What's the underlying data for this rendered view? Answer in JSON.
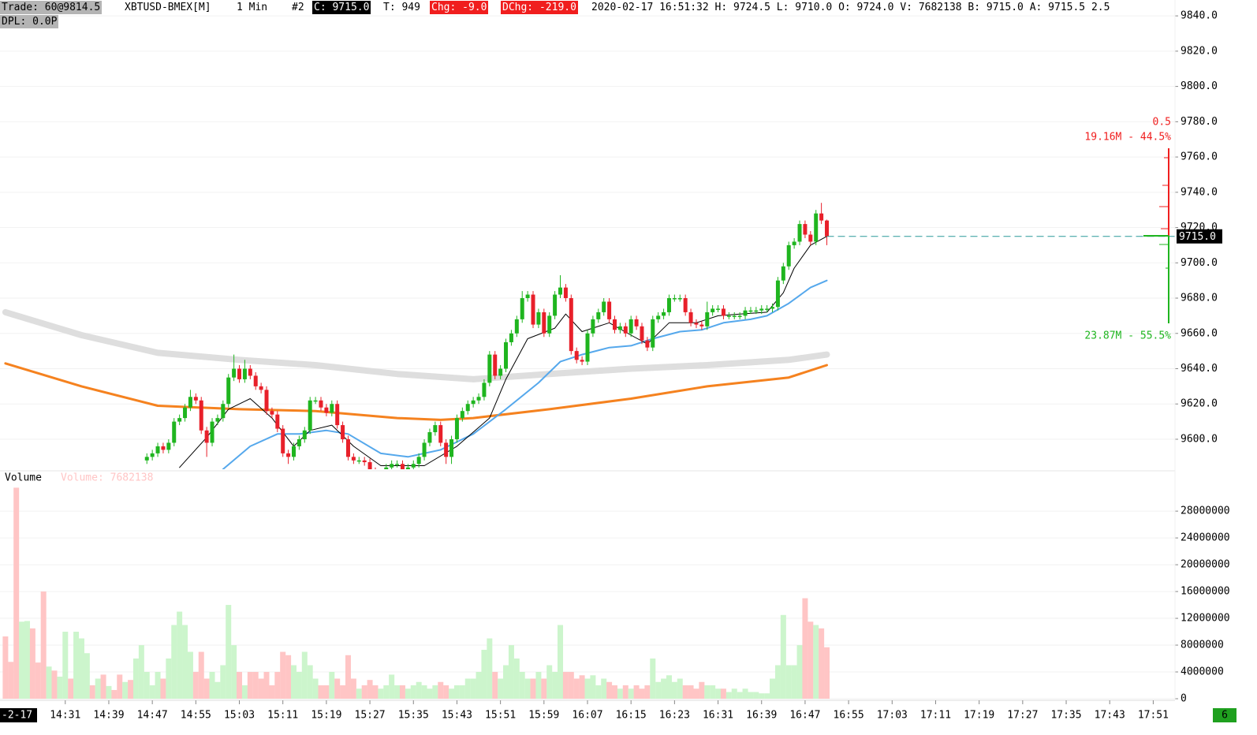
{
  "header": {
    "trade": "Trade: 60@9814.5",
    "symbol": "XBTUSD-BMEX[M]",
    "interval": "1 Min",
    "chart_no": "#2",
    "close": "C: 9715.0",
    "ticks": "T: 949",
    "change": "Chg: -9.0",
    "day_change": "DChg: -219.0",
    "summary": "2020-02-17 16:51:32 H: 9724.5 L: 9710.0 O: 9724.0 V: 7682138 B: 9715.0 A: 9715.5 2.5",
    "dpl": "DPL: 0.0P"
  },
  "chart_data": {
    "type": "candlestick",
    "xlim": [
      "14:19",
      "17:55"
    ],
    "xticks": [
      "14:31",
      "14:39",
      "14:47",
      "14:55",
      "15:03",
      "15:11",
      "15:19",
      "15:27",
      "15:35",
      "15:43",
      "15:51",
      "15:59",
      "16:07",
      "16:15",
      "16:23",
      "16:31",
      "16:39",
      "16:47",
      "16:55",
      "17:03",
      "17:11",
      "17:19",
      "17:27",
      "17:35",
      "17:43",
      "17:51"
    ],
    "x_date_label": "-2-17",
    "ylim": [
      9583,
      9849
    ],
    "yticks": [
      {
        "value": 9600,
        "label": "9600.0"
      },
      {
        "value": 9620,
        "label": "9620.0"
      },
      {
        "value": 9640,
        "label": "9640.0"
      },
      {
        "value": 9660,
        "label": "9660.0"
      },
      {
        "value": 9680,
        "label": "9680.0"
      },
      {
        "value": 9700,
        "label": "9700.0"
      },
      {
        "value": 9720,
        "label": "9720.0"
      },
      {
        "value": 9740,
        "label": "9740.0"
      },
      {
        "value": 9760,
        "label": "9760.0"
      },
      {
        "value": 9780,
        "label": "9780.0"
      },
      {
        "value": 9800,
        "label": "9800.0"
      },
      {
        "value": 9820,
        "label": "9820.0"
      },
      {
        "value": 9840,
        "label": "9840.0"
      }
    ],
    "grid": true,
    "start": "14:46",
    "up_color": "#1fb51f",
    "down_color": "#e8202a",
    "open": [
      9588,
      9590,
      9592,
      9596,
      9594,
      9598,
      9610,
      9612,
      9618,
      9624,
      9622,
      9605,
      9598,
      9610,
      9612,
      9620,
      9635,
      9640,
      9634,
      9640,
      9636,
      9630,
      9628,
      9616,
      9614,
      9606,
      9592,
      9590,
      9596,
      9600,
      9605,
      9622,
      9622,
      9618,
      9615,
      9620,
      9608,
      9600,
      9590,
      9588,
      9588,
      9587,
      9582,
      9580,
      9580,
      9584,
      9586,
      9586,
      9582,
      9584,
      9586,
      9590,
      9598,
      9604,
      9608,
      9598,
      9590,
      9600,
      9612,
      9616,
      9620,
      9622,
      9624,
      9632,
      9648,
      9636,
      9640,
      9655,
      9660,
      9668,
      9680,
      9682,
      9665,
      9672,
      9660,
      9670,
      9682,
      9686,
      9680,
      9650,
      9645,
      9644,
      9660,
      9668,
      9672,
      9678,
      9668,
      9662,
      9664,
      9660,
      9668,
      9664,
      9656,
      9652,
      9668,
      9670,
      9672,
      9680,
      9680,
      9680,
      9672,
      9666,
      9665,
      9664,
      9672,
      9674,
      9674,
      9670,
      9670,
      9670,
      9670,
      9673,
      9673,
      9673,
      9674,
      9674,
      9675,
      9690,
      9698,
      9710,
      9712,
      9722,
      9716,
      9712,
      9728,
      9724
    ],
    "high": [
      9592,
      9594,
      9598,
      9598,
      9600,
      9612,
      9614,
      9620,
      9628,
      9626,
      9624,
      9607,
      9612,
      9614,
      9622,
      9637,
      9648,
      9642,
      9645,
      9642,
      9638,
      9632,
      9630,
      9618,
      9616,
      9608,
      9594,
      9598,
      9602,
      9607,
      9624,
      9624,
      9624,
      9620,
      9622,
      9622,
      9610,
      9602,
      9592,
      9590,
      9590,
      9589,
      9584,
      9582,
      9586,
      9588,
      9588,
      9588,
      9586,
      9588,
      9592,
      9600,
      9606,
      9610,
      9610,
      9600,
      9602,
      9614,
      9618,
      9622,
      9624,
      9626,
      9634,
      9650,
      9650,
      9642,
      9657,
      9662,
      9670,
      9684,
      9684,
      9684,
      9674,
      9674,
      9672,
      9684,
      9693,
      9688,
      9682,
      9652,
      9647,
      9662,
      9670,
      9674,
      9680,
      9680,
      9670,
      9666,
      9666,
      9670,
      9670,
      9666,
      9658,
      9670,
      9672,
      9674,
      9682,
      9682,
      9682,
      9682,
      9674,
      9668,
      9667,
      9678,
      9676,
      9676,
      9676,
      9672,
      9672,
      9672,
      9675,
      9675,
      9675,
      9676,
      9676,
      9677,
      9692,
      9700,
      9712,
      9714,
      9724,
      9724,
      9718,
      9730,
      9734,
      9724.5
    ],
    "low": [
      9586,
      9588,
      9590,
      9592,
      9592,
      9596,
      9608,
      9610,
      9616,
      9620,
      9603,
      9590,
      9596,
      9608,
      9610,
      9618,
      9633,
      9632,
      9632,
      9634,
      9628,
      9626,
      9614,
      9612,
      9604,
      9590,
      9586,
      9588,
      9594,
      9598,
      9603,
      9620,
      9616,
      9613,
      9613,
      9606,
      9598,
      9588,
      9586,
      9586,
      9585,
      9580,
      9578,
      9578,
      9578,
      9582,
      9584,
      9580,
      9580,
      9582,
      9584,
      9588,
      9596,
      9602,
      9596,
      9586,
      9586,
      9598,
      9610,
      9614,
      9618,
      9620,
      9622,
      9630,
      9634,
      9634,
      9638,
      9653,
      9658,
      9666,
      9678,
      9663,
      9663,
      9658,
      9658,
      9668,
      9680,
      9678,
      9648,
      9643,
      9642,
      9642,
      9658,
      9666,
      9670,
      9666,
      9660,
      9660,
      9658,
      9658,
      9662,
      9654,
      9650,
      9650,
      9666,
      9668,
      9670,
      9678,
      9678,
      9670,
      9664,
      9663,
      9662,
      9662,
      9670,
      9672,
      9668,
      9668,
      9668,
      9668,
      9668,
      9671,
      9671,
      9671,
      9672,
      9672,
      9673,
      9688,
      9696,
      9708,
      9710,
      9714,
      9710,
      9710,
      9722,
      9710
    ],
    "close": [
      9590,
      9592,
      9596,
      9594,
      9598,
      9610,
      9612,
      9618,
      9624,
      9622,
      9605,
      9598,
      9610,
      9612,
      9620,
      9635,
      9640,
      9634,
      9640,
      9636,
      9630,
      9628,
      9616,
      9614,
      9606,
      9592,
      9590,
      9596,
      9600,
      9605,
      9622,
      9622,
      9618,
      9615,
      9620,
      9608,
      9600,
      9590,
      9588,
      9588,
      9587,
      9582,
      9580,
      9580,
      9584,
      9586,
      9586,
      9582,
      9584,
      9586,
      9590,
      9598,
      9604,
      9608,
      9598,
      9590,
      9600,
      9612,
      9616,
      9620,
      9622,
      9624,
      9632,
      9648,
      9636,
      9640,
      9655,
      9660,
      9668,
      9680,
      9682,
      9665,
      9672,
      9660,
      9670,
      9682,
      9686,
      9680,
      9650,
      9645,
      9644,
      9660,
      9668,
      9672,
      9678,
      9668,
      9662,
      9664,
      9660,
      9668,
      9664,
      9656,
      9652,
      9668,
      9670,
      9672,
      9680,
      9680,
      9680,
      9672,
      9666,
      9665,
      9664,
      9672,
      9674,
      9674,
      9670,
      9670,
      9670,
      9670,
      9673,
      9673,
      9673,
      9674,
      9674,
      9675,
      9690,
      9698,
      9710,
      9712,
      9722,
      9716,
      9712,
      9728,
      9724,
      9715
    ],
    "moving_averages": [
      {
        "color": "#dedede",
        "width": 8,
        "x": [
          "14:20",
          "14:34",
          "14:48",
          "15:03",
          "15:17",
          "15:32",
          "15:46",
          "16:00",
          "16:15",
          "16:29",
          "16:44",
          "16:51"
        ],
        "values": [
          9672,
          9659,
          9649,
          9645,
          9642,
          9637,
          9634,
          9637,
          9640,
          9642,
          9645,
          9648
        ]
      },
      {
        "color": "#f5821f",
        "width": 3,
        "x": [
          "14:20",
          "14:34",
          "14:48",
          "15:03",
          "15:17",
          "15:32",
          "15:40",
          "15:46",
          "16:00",
          "16:15",
          "16:29",
          "16:44",
          "16:51"
        ],
        "values": [
          9643,
          9630,
          9619,
          9617,
          9616,
          9612,
          9611,
          9612,
          9617,
          9623,
          9630,
          9635,
          9642
        ]
      },
      {
        "color": "#55a8ec",
        "width": 2,
        "x": [
          "15:00",
          "15:05",
          "15:10",
          "15:14",
          "15:19",
          "15:23",
          "15:29",
          "15:34",
          "15:40",
          "15:46",
          "15:52",
          "15:58",
          "16:02",
          "16:06",
          "16:11",
          "16:15",
          "16:19",
          "16:24",
          "16:28",
          "16:32",
          "16:37",
          "16:40",
          "16:44",
          "16:48",
          "16:51"
        ],
        "values": [
          9583,
          9596,
          9603,
          9603,
          9605,
          9603,
          9592,
          9590,
          9594,
          9603,
          9617,
          9632,
          9644,
          9648,
          9652,
          9653,
          9657,
          9661,
          9662,
          9666,
          9668,
          9670,
          9677,
          9686,
          9690
        ]
      },
      {
        "color": "#000000",
        "width": 1,
        "x": [
          "14:52",
          "14:57",
          "15:01",
          "15:05",
          "15:09",
          "15:13",
          "15:16",
          "15:20",
          "15:24",
          "15:29",
          "15:37",
          "15:43",
          "15:49",
          "15:52",
          "15:56",
          "16:01",
          "16:03",
          "16:06",
          "16:11",
          "16:15",
          "16:18",
          "16:22",
          "16:27",
          "16:31",
          "16:35",
          "16:40",
          "16:43",
          "16:45",
          "16:48",
          "16:51"
        ],
        "values": [
          9584,
          9601,
          9617,
          9623,
          9612,
          9596,
          9605,
          9608,
          9596,
          9585,
          9585,
          9596,
          9612,
          9634,
          9657,
          9663,
          9671,
          9661,
          9666,
          9659,
          9654,
          9666,
          9666,
          9670,
          9671,
          9672,
          9683,
          9697,
          9710,
          9715
        ]
      }
    ],
    "last_price": {
      "value": 9715,
      "label": "9715.0"
    },
    "profile": {
      "peak_label": "0.5",
      "ask_label": "19.16M - 44.5%",
      "bid_label": "23.87M - 55.5%"
    },
    "volume": {
      "title": "Volume",
      "current_label": "Volume: 7682138",
      "start": "14:20",
      "ylim": [
        0,
        33900000
      ],
      "yticks": [
        0,
        4000000,
        8000000,
        12000000,
        16000000,
        20000000,
        24000000,
        28000000
      ],
      "up_color": "#ccf5cc",
      "down_color": "#ffc5c5",
      "rising_before": [
        false,
        false,
        false,
        true,
        true,
        false,
        false,
        false,
        true,
        false,
        true,
        true,
        false,
        true,
        true,
        true,
        false,
        true,
        false,
        true,
        false,
        false,
        true,
        false,
        true,
        true
      ],
      "values": [
        9300000,
        5500000,
        31500000,
        11500000,
        11600000,
        10500000,
        5400000,
        16000000,
        4800000,
        4200000,
        3300000,
        10000000,
        3000000,
        10000000,
        9000000,
        6800000,
        2000000,
        3000000,
        3600000,
        1900000,
        1300000,
        3600000,
        2500000,
        2800000,
        6000000,
        8000000,
        4000000,
        2000000,
        4000000,
        3000000,
        6000000,
        11000000,
        13000000,
        11000000,
        7000000,
        4000000,
        7000000,
        3000000,
        4000000,
        2500000,
        5000000,
        14000000,
        8000000,
        4000000,
        2000000,
        4000000,
        4000000,
        3000000,
        4000000,
        2000000,
        4000000,
        7000000,
        6500000,
        5000000,
        4000000,
        7000000,
        5000000,
        3000000,
        2000000,
        2000000,
        4000000,
        3000000,
        2000000,
        6500000,
        3000000,
        1500000,
        2000000,
        2800000,
        2000000,
        1500000,
        2000000,
        3600000,
        2000000,
        2000000,
        1500000,
        2000000,
        2500000,
        2000000,
        1500000,
        2000000,
        2500000,
        2000000,
        1500000,
        2000000,
        2000000,
        3000000,
        3000000,
        4000000,
        7300000,
        9000000,
        4000000,
        3000000,
        5000000,
        8000000,
        6000000,
        4000000,
        3000000,
        3000000,
        4000000,
        3000000,
        5000000,
        4000000,
        11000000,
        4000000,
        4000000,
        3000000,
        3500000,
        3000000,
        3500000,
        2000000,
        3000000,
        2500000,
        2000000,
        1500000,
        2000000,
        1500000,
        2000000,
        1500000,
        2000000,
        6000000,
        2500000,
        3000000,
        3500000,
        2500000,
        3000000,
        2000000,
        2000000,
        1500000,
        2500000,
        2000000,
        2000000,
        1500000,
        1500000,
        1000000,
        1500000,
        1000000,
        1500000,
        1000000,
        1000000,
        800000,
        800000,
        3000000,
        5000000,
        12500000,
        5000000,
        5000000,
        8000000,
        15000000,
        11500000,
        11000000,
        10500000,
        7682138
      ]
    },
    "corner_label": "6"
  }
}
